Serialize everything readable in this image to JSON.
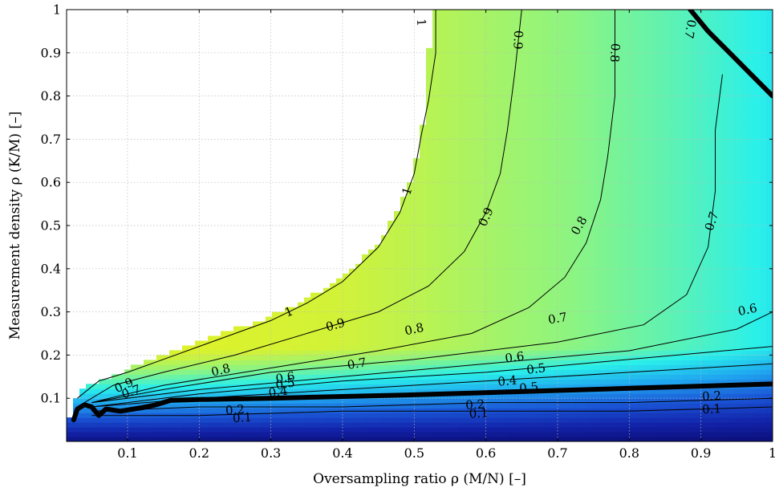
{
  "chart_data": {
    "type": "heatmap",
    "title": "",
    "xlabel": "Oversampling ratio ρ (M/N) [–]",
    "ylabel": "Measurement density ρ (K/M) [–]",
    "xlim": [
      0.015,
      1.0
    ],
    "ylim": [
      0.0,
      1.0
    ],
    "grid": true,
    "colormap": [
      "#0a0a6e",
      "#1222a8",
      "#1a55d6",
      "#20a8f0",
      "#2af0ea",
      "#8cf482",
      "#d2f238",
      "#e6f21e"
    ],
    "x_ticks": [
      "0.1",
      "0.2",
      "0.3",
      "0.4",
      "0.5",
      "0.6",
      "0.7",
      "0.8",
      "0.9",
      "1"
    ],
    "y_ticks": [
      "0.1",
      "0.2",
      "0.3",
      "0.4",
      "0.5",
      "0.6",
      "0.7",
      "0.8",
      "0.9",
      "1"
    ],
    "x_tick_values": [
      0.1,
      0.2,
      0.3,
      0.4,
      0.5,
      0.6,
      0.7,
      0.8,
      0.9,
      1.0
    ],
    "y_tick_values": [
      0.1,
      0.2,
      0.3,
      0.4,
      0.5,
      0.6,
      0.7,
      0.8,
      0.9,
      1.0
    ],
    "boundary": {
      "x": [
        0.02,
        0.03,
        0.04,
        0.06,
        0.09,
        0.12,
        0.15,
        0.2,
        0.25,
        0.3,
        0.35,
        0.4,
        0.45,
        0.48,
        0.5,
        0.51,
        0.52,
        0.52,
        0.53
      ],
      "y": [
        0.06,
        0.11,
        0.13,
        0.14,
        0.16,
        0.18,
        0.2,
        0.23,
        0.26,
        0.29,
        0.33,
        0.38,
        0.46,
        0.54,
        0.63,
        0.72,
        0.8,
        0.9,
        1.0
      ]
    },
    "contours": [
      {
        "level": "1",
        "x": [
          0.03,
          0.06,
          0.1,
          0.15,
          0.2,
          0.25,
          0.3,
          0.35,
          0.4,
          0.45,
          0.48,
          0.5,
          0.51,
          0.52,
          0.53,
          0.53
        ],
        "y": [
          0.1,
          0.14,
          0.16,
          0.19,
          0.22,
          0.25,
          0.28,
          0.32,
          0.37,
          0.45,
          0.53,
          0.62,
          0.71,
          0.79,
          0.9,
          1.0
        ]
      },
      {
        "level": "0.9",
        "x": [
          0.04,
          0.08,
          0.15,
          0.25,
          0.35,
          0.45,
          0.52,
          0.57,
          0.6,
          0.62,
          0.63,
          0.64,
          0.65
        ],
        "y": [
          0.09,
          0.13,
          0.16,
          0.2,
          0.25,
          0.3,
          0.36,
          0.44,
          0.53,
          0.62,
          0.72,
          0.85,
          1.0
        ]
      },
      {
        "level": "0.8",
        "x": [
          0.05,
          0.15,
          0.3,
          0.45,
          0.58,
          0.66,
          0.71,
          0.74,
          0.76,
          0.77,
          0.78,
          0.78
        ],
        "y": [
          0.09,
          0.13,
          0.17,
          0.21,
          0.25,
          0.31,
          0.38,
          0.46,
          0.56,
          0.66,
          0.8,
          1.0
        ]
      },
      {
        "level": "0.7",
        "x": [
          0.05,
          0.15,
          0.3,
          0.5,
          0.7,
          0.82,
          0.88,
          0.91,
          0.92,
          0.92,
          0.93
        ],
        "y": [
          0.09,
          0.12,
          0.16,
          0.19,
          0.23,
          0.27,
          0.34,
          0.45,
          0.58,
          0.72,
          0.85
        ]
      },
      {
        "level": "0.6",
        "x": [
          0.05,
          0.2,
          0.4,
          0.6,
          0.8,
          0.95,
          1.0
        ],
        "y": [
          0.09,
          0.12,
          0.15,
          0.18,
          0.21,
          0.26,
          0.3
        ]
      },
      {
        "level": "0.5",
        "x": [
          0.05,
          0.2,
          0.4,
          0.6,
          0.8,
          1.0
        ],
        "y": [
          0.08,
          0.11,
          0.14,
          0.16,
          0.19,
          0.22
        ]
      },
      {
        "level": "0.4",
        "x": [
          0.05,
          0.2,
          0.4,
          0.6,
          0.8,
          1.0
        ],
        "y": [
          0.08,
          0.1,
          0.12,
          0.14,
          0.16,
          0.18
        ]
      },
      {
        "level": "0.2",
        "x": [
          0.05,
          0.2,
          0.4,
          0.6,
          0.8,
          1.0
        ],
        "y": [
          0.07,
          0.08,
          0.08,
          0.09,
          0.09,
          0.1
        ]
      },
      {
        "level": "0.1",
        "x": [
          0.05,
          0.2,
          0.4,
          0.6,
          0.8,
          1.0
        ],
        "y": [
          0.06,
          0.06,
          0.07,
          0.07,
          0.07,
          0.08
        ]
      }
    ],
    "thick_lines": [
      {
        "x": [
          0.025,
          0.03,
          0.04,
          0.05,
          0.06,
          0.07,
          0.09,
          0.12,
          0.14,
          0.16,
          0.2,
          0.3,
          0.4,
          0.5,
          0.6,
          0.7,
          0.8,
          0.9,
          1.0
        ],
        "y": [
          0.05,
          0.075,
          0.085,
          0.08,
          0.06,
          0.075,
          0.07,
          0.078,
          0.085,
          0.095,
          0.097,
          0.1,
          0.104,
          0.108,
          0.113,
          0.118,
          0.123,
          0.128,
          0.133
        ]
      },
      {
        "x": [
          0.885,
          0.91,
          0.94,
          0.97,
          1.0
        ],
        "y": [
          1.0,
          0.95,
          0.9,
          0.85,
          0.8
        ]
      }
    ],
    "contour_labels": [
      {
        "text": "1",
        "x": 0.51,
        "y": 0.97,
        "angle": 85
      },
      {
        "text": "0.9",
        "x": 0.645,
        "y": 0.93,
        "angle": 92
      },
      {
        "text": "0.8",
        "x": 0.78,
        "y": 0.9,
        "angle": 93
      },
      {
        "text": "0.7",
        "x": 0.885,
        "y": 0.955,
        "angle": 100
      },
      {
        "text": "1",
        "x": 0.49,
        "y": 0.58,
        "angle": -72
      },
      {
        "text": "0.9",
        "x": 0.6,
        "y": 0.52,
        "angle": -66
      },
      {
        "text": "0.8",
        "x": 0.73,
        "y": 0.5,
        "angle": -60
      },
      {
        "text": "0.7",
        "x": 0.915,
        "y": 0.51,
        "angle": -72
      },
      {
        "text": "1",
        "x": 0.325,
        "y": 0.3,
        "angle": -22
      },
      {
        "text": "0.9",
        "x": 0.39,
        "y": 0.27,
        "angle": -16
      },
      {
        "text": "0.8",
        "x": 0.5,
        "y": 0.26,
        "angle": -12
      },
      {
        "text": "0.7",
        "x": 0.7,
        "y": 0.285,
        "angle": -10
      },
      {
        "text": "0.6",
        "x": 0.965,
        "y": 0.305,
        "angle": -12
      },
      {
        "text": "0.8",
        "x": 0.23,
        "y": 0.165,
        "angle": -14
      },
      {
        "text": "0.7",
        "x": 0.42,
        "y": 0.18,
        "angle": -10
      },
      {
        "text": "0.6",
        "x": 0.64,
        "y": 0.195,
        "angle": -8
      },
      {
        "text": "0.5",
        "x": 0.67,
        "y": 0.168,
        "angle": -7
      },
      {
        "text": "0.6",
        "x": 0.32,
        "y": 0.148,
        "angle": -10
      },
      {
        "text": "0.5",
        "x": 0.32,
        "y": 0.133,
        "angle": -10
      },
      {
        "text": "0.4",
        "x": 0.63,
        "y": 0.14,
        "angle": -6
      },
      {
        "text": "0.5",
        "x": 0.66,
        "y": 0.125,
        "angle": -6
      },
      {
        "text": "0.4",
        "x": 0.31,
        "y": 0.115,
        "angle": -8
      },
      {
        "text": "0.9",
        "x": 0.095,
        "y": 0.13,
        "angle": -25
      },
      {
        "text": "0.7",
        "x": 0.105,
        "y": 0.115,
        "angle": -20
      },
      {
        "text": "0.2",
        "x": 0.25,
        "y": 0.073,
        "angle": -4
      },
      {
        "text": "0.1",
        "x": 0.26,
        "y": 0.055,
        "angle": -4
      },
      {
        "text": "0.2",
        "x": 0.585,
        "y": 0.085,
        "angle": -3
      },
      {
        "text": "0.1",
        "x": 0.59,
        "y": 0.065,
        "angle": -3
      },
      {
        "text": "0.2",
        "x": 0.915,
        "y": 0.105,
        "angle": -3
      },
      {
        "text": "0.1",
        "x": 0.915,
        "y": 0.075,
        "angle": -3
      }
    ]
  }
}
